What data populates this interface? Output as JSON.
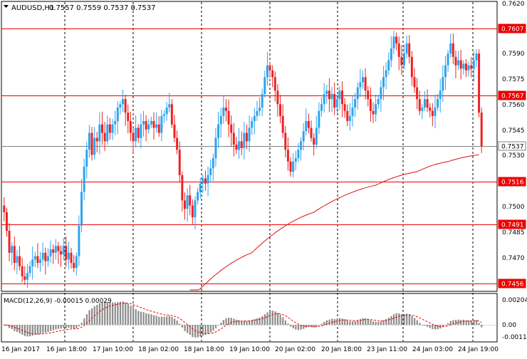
{
  "header": {
    "symbol_timeframe": "AUDUSD,H1",
    "ohlc": "0.7557 0.7559 0.7537 0.7537",
    "dropdown_icon": "triangle-down-icon"
  },
  "macd": {
    "label": "MACD(12,26,9) -0.00015 0.00029",
    "axis_labels": [
      "0.00204",
      "0.00",
      "-0.0011"
    ]
  },
  "colors": {
    "background": "#ffffff",
    "grid_and_frame": "#000000",
    "bull_candle": "#2fa3f0",
    "bear_candle": "#ee2222",
    "level_line": "#ee0000",
    "current_price_line": "#808080",
    "moving_average": "#dd1111",
    "macd_histogram": "#8c8c8c",
    "macd_signal": "#ee0000",
    "price_badge_bg": "#ee0000",
    "price_badge_text": "#ffffff"
  },
  "price_axis": {
    "labels": [
      "0.7620",
      "0.7590",
      "0.7575",
      "0.7560",
      "0.7545",
      "0.7530",
      "0.7500",
      "0.7485",
      "0.7470"
    ]
  },
  "levels": [
    {
      "price": 0.7607,
      "label": "0.7607",
      "style": "red-badge"
    },
    {
      "price": 0.7567,
      "label": "0.7567",
      "style": "red-badge"
    },
    {
      "price": 0.7537,
      "label": "0.7537",
      "style": "current-price"
    },
    {
      "price": 0.7516,
      "label": "0.7516",
      "style": "red-badge"
    },
    {
      "price": 0.7491,
      "label": "0.7491",
      "style": "red-badge"
    },
    {
      "price": 0.7456,
      "label": "0.7456",
      "style": "red-badge"
    }
  ],
  "time_axis": {
    "labels": [
      "16 Jan 2017",
      "16 Jan 18:00",
      "17 Jan 10:00",
      "18 Jan 02:00",
      "18 Jan 18:00",
      "19 Jan 10:00",
      "20 Jan 02:00",
      "20 Jan 18:00",
      "23 Jan 11:00",
      "24 Jan 03:00",
      "24 Jan 19:00"
    ]
  },
  "chart_data": {
    "type": "candlestick",
    "symbol": "AUDUSD",
    "timeframe": "H1",
    "y_range": [
      0.7452,
      0.7622
    ],
    "closes": [
      0.7498,
      0.7487,
      0.7474,
      0.7478,
      0.7468,
      0.7472,
      0.7466,
      0.746,
      0.7458,
      0.7462,
      0.7466,
      0.747,
      0.7472,
      0.7468,
      0.747,
      0.7474,
      0.7469,
      0.7472,
      0.7476,
      0.7474,
      0.7478,
      0.7475,
      0.7473,
      0.7478,
      0.747,
      0.7474,
      0.7468,
      0.7465,
      0.7472,
      0.749,
      0.751,
      0.7525,
      0.7535,
      0.7545,
      0.7532,
      0.7542,
      0.754,
      0.755,
      0.7545,
      0.754,
      0.755,
      0.7545,
      0.755,
      0.7552,
      0.756,
      0.7562,
      0.7565,
      0.7557,
      0.7552,
      0.7545,
      0.754,
      0.7548,
      0.7542,
      0.755,
      0.7552,
      0.7547,
      0.755,
      0.7552,
      0.7548,
      0.755,
      0.7545,
      0.7555,
      0.7556,
      0.756,
      0.7562,
      0.755,
      0.7542,
      0.7535,
      0.752,
      0.7505,
      0.75,
      0.7508,
      0.7502,
      0.7495,
      0.7505,
      0.751,
      0.7515,
      0.7518,
      0.7515,
      0.752,
      0.7524,
      0.753,
      0.7542,
      0.755,
      0.7555,
      0.756,
      0.7558,
      0.755,
      0.7545,
      0.7538,
      0.7535,
      0.754,
      0.7536,
      0.7545,
      0.754,
      0.7548,
      0.7552,
      0.7555,
      0.7558,
      0.756,
      0.7568,
      0.7578,
      0.7585,
      0.7582,
      0.7578,
      0.757,
      0.7562,
      0.7555,
      0.7545,
      0.7535,
      0.7528,
      0.7522,
      0.7528,
      0.753,
      0.7535,
      0.754,
      0.7546,
      0.7552,
      0.7548,
      0.7542,
      0.7538,
      0.7548,
      0.7558,
      0.7562,
      0.7568,
      0.757,
      0.7565,
      0.7568,
      0.756,
      0.7565,
      0.757,
      0.7562,
      0.7558,
      0.7552,
      0.7555,
      0.756,
      0.7565,
      0.7572,
      0.7575,
      0.7578,
      0.757,
      0.7565,
      0.7558,
      0.7556,
      0.7562,
      0.7565,
      0.7572,
      0.7578,
      0.7582,
      0.7588,
      0.7595,
      0.7602,
      0.7598,
      0.759,
      0.7585,
      0.7592,
      0.7598,
      0.759,
      0.7578,
      0.7572,
      0.7565,
      0.7558,
      0.756,
      0.7565,
      0.756,
      0.7558,
      0.7555,
      0.756,
      0.7565,
      0.757,
      0.7578,
      0.7585,
      0.7592,
      0.7598,
      0.759,
      0.7585,
      0.7588,
      0.7583,
      0.7586,
      0.7582,
      0.7585,
      0.7583,
      0.7588,
      0.7592,
      0.7557,
      0.7537
    ],
    "moving_average": {
      "start_index": 72,
      "start_value": 0.7446,
      "points": [
        [
          72,
          0.7446
        ],
        [
          96,
          0.7474
        ],
        [
          120,
          0.7498
        ],
        [
          144,
          0.7514
        ],
        [
          160,
          0.7522
        ],
        [
          172,
          0.7528
        ],
        [
          184,
          0.7532
        ]
      ]
    }
  }
}
